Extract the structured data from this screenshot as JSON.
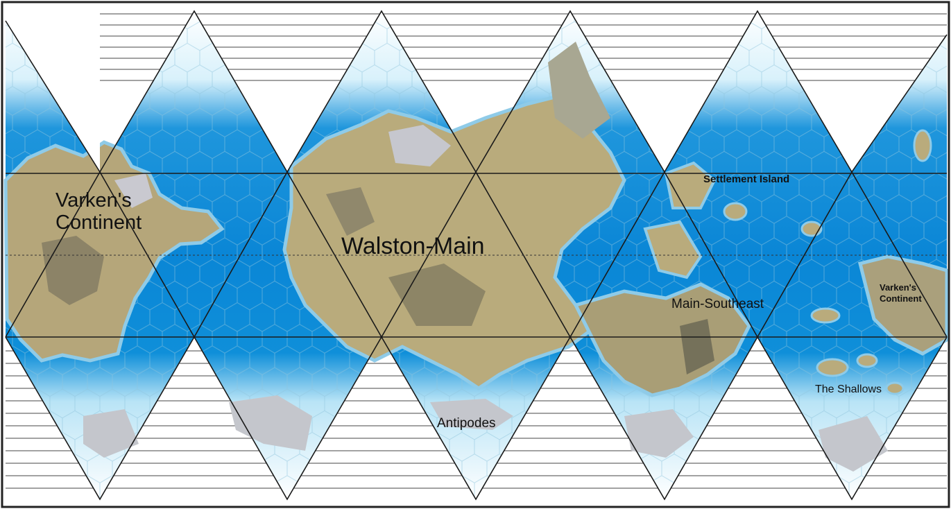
{
  "map": {
    "labels": {
      "varkens_continent_west_l1": "Varken's",
      "varkens_continent_west_l2": "Continent",
      "walston_main": "Walston-Main",
      "settlement_island": "Settlement Island",
      "main_southeast": "Main-Southeast",
      "varkens_continent_east_l1": "Varken's",
      "varkens_continent_east_l2": "Continent",
      "the_shallows": "The Shallows",
      "antipodes": "Antipodes"
    },
    "colors": {
      "ocean": "#0a86d6",
      "ocean_light": "#c9ecf8",
      "land": "#b9ab7c",
      "land_dark": "#6d6b58",
      "ice": "#c4c6cc",
      "grid": "#1a1a1a",
      "hex": "#7fb8d6"
    }
  }
}
